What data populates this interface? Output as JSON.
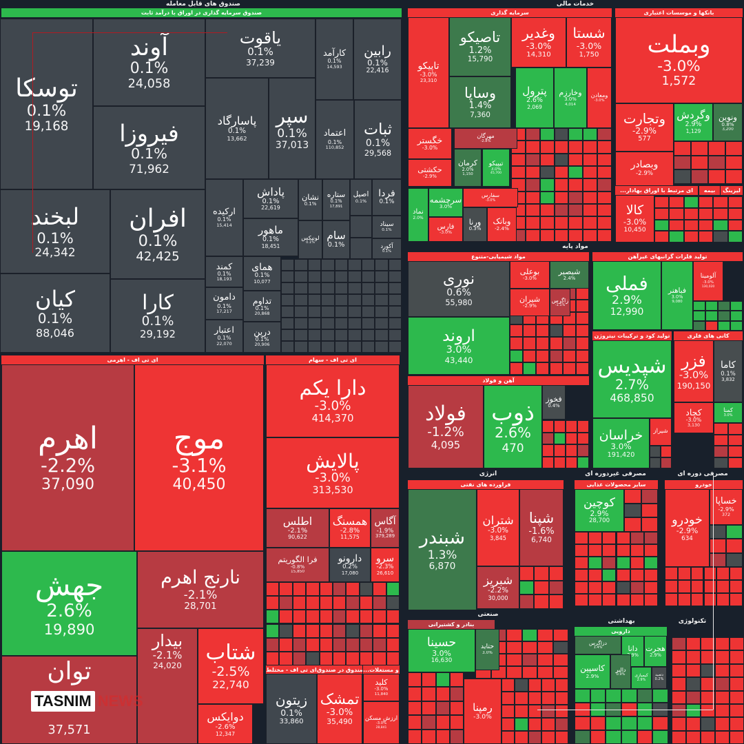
{
  "colors": {
    "gray": "#40474e",
    "red": "#ee3434",
    "dred": "#b73b42",
    "green": "#2db94d",
    "dgreen": "#3d7a4c",
    "slate": "#474d4f",
    "bg": "#18202b"
  },
  "sections": {
    "funds": "صندوق های قابل معامله",
    "fixed_income": "صندوق سرمایه گذاری در اوراق با درآمد ثابت",
    "financial": "خدمات مالی",
    "investment": "سرمایه گذاری",
    "banks": "بانکها و موسسات اعتباری",
    "commodity_funds": "...ای مرتبط با اوراق بهادار",
    "insurance": "بیمه",
    "leasing": "لیزینگ",
    "basic_materials": "مواد پایه",
    "chemicals": "مواد شیمیایی-متنوع",
    "precious_metals": "تولید فلزات گرانبهای غیرآهن",
    "fertilizer": "تولید کود و ترکیبات نیتروژن",
    "metal_ores": "کانی های فلزی",
    "steel": "آهن و فولاد",
    "energy": "انرژی",
    "oil_products": "فراورده های نفتی",
    "consumer_non_cyclical": "مصرفی غیردوره ای",
    "other_food": "سایر محصولات غذایی",
    "consumer_cyclical": "مصرفی دوره ای",
    "auto": "خودرو",
    "industrial": "صنعتی",
    "ports_shipping": "بنادر و کشتیرانی",
    "healthcare": "بهداشتی",
    "pharma": "دارویی",
    "technology": "تکنولوژی",
    "etf_leveraged": "ای تی اف - اهرمی",
    "etf_equity": "ای تی اف - سهام",
    "etf_mixed": "ای تی اف - مختلط",
    "fund_of_funds": "صندوق در صندوق",
    "real_estate": "...لاک و مستغلات"
  },
  "cells": [
    {
      "name": "توسکا",
      "pct": "0.1%",
      "val": "19,168",
      "color": "gray"
    },
    {
      "name": "آوند",
      "pct": "0.1%",
      "val": "24,058",
      "color": "gray"
    },
    {
      "name": "فیروزا",
      "pct": "0.1%",
      "val": "71,962",
      "color": "gray"
    },
    {
      "name": "یاقوت",
      "pct": "0.1%",
      "val": "37,239",
      "color": "gray"
    },
    {
      "name": "کارآمد",
      "pct": "0.1%",
      "val": "14,593",
      "color": "gray"
    },
    {
      "name": "رابین",
      "pct": "0.1%",
      "val": "22,416",
      "color": "gray"
    },
    {
      "name": "پاسارگاد",
      "pct": "0.1%",
      "val": "13,662",
      "color": "gray"
    },
    {
      "name": "سپر",
      "pct": "0.1%",
      "val": "37,013",
      "color": "gray"
    },
    {
      "name": "اعتماد",
      "pct": "0.1%",
      "val": "110,852",
      "color": "gray"
    },
    {
      "name": "ثبات",
      "pct": "0.1%",
      "val": "29,568",
      "color": "gray"
    },
    {
      "name": "لبخند",
      "pct": "0.1%",
      "val": "24,342",
      "color": "gray"
    },
    {
      "name": "افران",
      "pct": "0.1%",
      "val": "42,425",
      "color": "gray"
    },
    {
      "name": "کیان",
      "pct": "0.1%",
      "val": "88,046",
      "color": "gray"
    },
    {
      "name": "کارا",
      "pct": "0.1%",
      "val": "29,192",
      "color": "gray"
    },
    {
      "name": "ارکیده",
      "pct": "0.1%",
      "val": "15,414",
      "color": "gray"
    },
    {
      "name": "پاداش",
      "pct": "0.1%",
      "val": "22,619",
      "color": "gray"
    },
    {
      "name": "ماهور",
      "pct": "0.1%",
      "val": "18,451",
      "color": "gray"
    },
    {
      "name": "نشان",
      "pct": "0.1%",
      "val": "",
      "color": "gray"
    },
    {
      "name": "ستاره",
      "pct": "0.1%",
      "val": "17,891",
      "color": "gray"
    },
    {
      "name": "اصیل",
      "pct": "0.1%",
      "val": "",
      "color": "gray"
    },
    {
      "name": "فردا",
      "pct": "0.1%",
      "val": "",
      "color": "gray"
    },
    {
      "name": "لونیکس",
      "pct": "0.1%",
      "val": "",
      "color": "gray"
    },
    {
      "name": "سام",
      "pct": "0.1%",
      "val": "",
      "color": "gray"
    },
    {
      "name": "سیناد",
      "pct": "0.1%",
      "val": "",
      "color": "gray"
    },
    {
      "name": "آکورد",
      "pct": "0.1%",
      "val": "",
      "color": "gray"
    },
    {
      "name": "کمند",
      "pct": "0.1%",
      "val": "18,193",
      "color": "gray"
    },
    {
      "name": "همای",
      "pct": "0.1%",
      "val": "10,077",
      "color": "gray"
    },
    {
      "name": "دامون",
      "pct": "0.1%",
      "val": "17,217",
      "color": "gray"
    },
    {
      "name": "تداوم",
      "pct": "0.1%",
      "val": "20,868",
      "color": "gray"
    },
    {
      "name": "اعتبار",
      "pct": "0.1%",
      "val": "22,070",
      "color": "gray"
    },
    {
      "name": "درین",
      "pct": "0.1%",
      "val": "20,906",
      "color": "gray"
    },
    {
      "name": "اهرم",
      "pct": "-2.2%",
      "val": "37,090",
      "color": "dred"
    },
    {
      "name": "موج",
      "pct": "-3.1%",
      "val": "40,450",
      "color": "red"
    },
    {
      "name": "جهش",
      "pct": "2.6%",
      "val": "19,890",
      "color": "green"
    },
    {
      "name": "نارنج اهرم",
      "pct": "-2.1%",
      "val": "28,701",
      "color": "dred"
    },
    {
      "name": "توان",
      "pct": "",
      "val": "37,571",
      "color": "dred"
    },
    {
      "name": "بیدار",
      "pct": "-2.1%",
      "val": "24,020",
      "color": "dred"
    },
    {
      "name": "شتاب",
      "pct": "-2.5%",
      "val": "22,740",
      "color": "red"
    },
    {
      "name": "دوایکس",
      "pct": "-2.6%",
      "val": "12,347",
      "color": "red"
    },
    {
      "name": "دارا یکم",
      "pct": "-3.0%",
      "val": "414,370",
      "color": "red"
    },
    {
      "name": "پالایش",
      "pct": "-3.0%",
      "val": "313,530",
      "color": "red"
    },
    {
      "name": "اطلس",
      "pct": "-2.1%",
      "val": "90,622",
      "color": "dred"
    },
    {
      "name": "همسنگ",
      "pct": "-2.8%",
      "val": "11,575",
      "color": "red"
    },
    {
      "name": "آگاس",
      "pct": "-1.9%",
      "val": "379,289",
      "color": "dred"
    },
    {
      "name": "فرا الگوریتم",
      "pct": "-0.8%",
      "val": "15,850",
      "color": "dred"
    },
    {
      "name": "دارونو",
      "pct": "0.2%",
      "val": "17,080",
      "color": "gray"
    },
    {
      "name": "سرو",
      "pct": "-2.3%",
      "val": "26,610",
      "color": "red"
    },
    {
      "name": "زیتون",
      "pct": "0.1%",
      "val": "33,860",
      "color": "gray"
    },
    {
      "name": "تمشک",
      "pct": "-3.0%",
      "val": "35,490",
      "color": "red"
    },
    {
      "name": "کلید",
      "pct": "-3.0%",
      "val": "11,840",
      "color": "red"
    },
    {
      "name": "ارزش مسکن",
      "pct": "-3.0%",
      "val": "28,841",
      "color": "red"
    },
    {
      "name": "تاپیکو",
      "pct": "-3.0%",
      "val": "23,310",
      "color": "red"
    },
    {
      "name": "تاصیکو",
      "pct": "1.2%",
      "val": "15,790",
      "color": "dgreen"
    },
    {
      "name": "وساپا",
      "pct": "1.4%",
      "val": "7,360",
      "color": "dgreen"
    },
    {
      "name": "وغدیر",
      "pct": "-3.0%",
      "val": "14,310",
      "color": "red"
    },
    {
      "name": "شستا",
      "pct": "-3.0%",
      "val": "1,750",
      "color": "red"
    },
    {
      "name": "پترول",
      "pct": "2.6%",
      "val": "2,069",
      "color": "green"
    },
    {
      "name": "وخارزم",
      "pct": "3.0%",
      "val": "4,014",
      "color": "green"
    },
    {
      "name": "ومعادن",
      "pct": "-3.0%",
      "val": "",
      "color": "red"
    },
    {
      "name": "خگستر",
      "pct": "-3.0%",
      "val": "",
      "color": "red"
    },
    {
      "name": "حکشتی",
      "pct": "-2.9%",
      "val": "",
      "color": "red"
    },
    {
      "name": "مهرگان",
      "pct": "-2.8%",
      "val": "",
      "color": "dred"
    },
    {
      "name": "کرمان",
      "pct": "2.0%",
      "val": "1,150",
      "color": "dgreen"
    },
    {
      "name": "تیپیکو",
      "pct": "3.0%",
      "val": "45,700",
      "color": "green"
    },
    {
      "name": "نماد",
      "pct": "2.0%",
      "val": "",
      "color": "green"
    },
    {
      "name": "سرچشمه",
      "pct": "3.0%",
      "val": "",
      "color": "green"
    },
    {
      "name": "سفارس",
      "pct": "-3.0%",
      "val": "",
      "color": "red"
    },
    {
      "name": "فارس",
      "pct": "-3.0%",
      "val": "",
      "color": "red"
    },
    {
      "name": "ورنا",
      "pct": "0.3%",
      "val": "",
      "color": "slate"
    },
    {
      "name": "وبانک",
      "pct": "-2.4%",
      "val": "",
      "color": "red"
    },
    {
      "name": "وبملت",
      "pct": "-3.0%",
      "val": "1,572",
      "color": "red"
    },
    {
      "name": "وتجارت",
      "pct": "-2.9%",
      "val": "577",
      "color": "red"
    },
    {
      "name": "وگردش",
      "pct": "2.9%",
      "val": "1,129",
      "color": "green"
    },
    {
      "name": "ونوین",
      "pct": "0.8%",
      "val": "3,200",
      "color": "dgreen"
    },
    {
      "name": "وبصادر",
      "pct": "-2.9%",
      "val": "",
      "color": "red"
    },
    {
      "name": "کالا",
      "pct": "-3.0%",
      "val": "10,450",
      "color": "red"
    },
    {
      "name": "نوری",
      "pct": "0.6%",
      "val": "55,980",
      "color": "slate"
    },
    {
      "name": "اروند",
      "pct": "3.0%",
      "val": "43,440",
      "color": "green"
    },
    {
      "name": "بوعلی",
      "pct": "-3.0%",
      "val": "",
      "color": "red"
    },
    {
      "name": "شیصیر",
      "pct": "2.4%",
      "val": "",
      "color": "dgreen"
    },
    {
      "name": "شیران",
      "pct": "-2.9%",
      "val": "",
      "color": "red"
    },
    {
      "name": "زاگرس",
      "pct": "-1.1%",
      "val": "",
      "color": "dred"
    },
    {
      "name": "فولاد",
      "pct": "-1.2%",
      "val": "4,095",
      "color": "dred"
    },
    {
      "name": "ذوب",
      "pct": "2.6%",
      "val": "470",
      "color": "green"
    },
    {
      "name": "فخوز",
      "pct": "0.4%",
      "val": "",
      "color": "slate"
    },
    {
      "name": "فملی",
      "pct": "2.9%",
      "val": "12,990",
      "color": "green"
    },
    {
      "name": "فباهنر",
      "pct": "3.0%",
      "val": "9,080",
      "color": "green"
    },
    {
      "name": "آلومینا",
      "pct": "-3.0%",
      "val": "130,020",
      "color": "red"
    },
    {
      "name": "شپدیس",
      "pct": "2.7%",
      "val": "468,850",
      "color": "green"
    },
    {
      "name": "خراسان",
      "pct": "3.0%",
      "val": "191,420",
      "color": "green"
    },
    {
      "name": "شیراز",
      "pct": "",
      "val": "",
      "color": "red"
    },
    {
      "name": "فزر",
      "pct": "-3.0%",
      "val": "190,150",
      "color": "red"
    },
    {
      "name": "کاما",
      "pct": "0.1%",
      "val": "3,832",
      "color": "slate"
    },
    {
      "name": "کچاد",
      "pct": "-3.0%",
      "val": "3,130",
      "color": "red"
    },
    {
      "name": "کمنا",
      "pct": "3.0%",
      "val": "",
      "color": "green"
    },
    {
      "name": "شبندر",
      "pct": "1.3%",
      "val": "6,870",
      "color": "dgreen"
    },
    {
      "name": "شتران",
      "pct": "-3.0%",
      "val": "3,845",
      "color": "red"
    },
    {
      "name": "شپنا",
      "pct": "-1.6%",
      "val": "6,740",
      "color": "dred"
    },
    {
      "name": "شبریز",
      "pct": "-2.2%",
      "val": "30,000",
      "color": "dred"
    },
    {
      "name": "کوچین",
      "pct": "2.9%",
      "val": "28,700",
      "color": "green"
    },
    {
      "name": "خودرو",
      "pct": "-2.9%",
      "val": "634",
      "color": "red"
    },
    {
      "name": "خساپا",
      "pct": "-2.9%",
      "val": "372",
      "color": "red"
    },
    {
      "name": "حسینا",
      "pct": "3.0%",
      "val": "16,630",
      "color": "green"
    },
    {
      "name": "حتاید",
      "pct": "3.0%",
      "val": "",
      "color": "dgreen"
    },
    {
      "name": "رمپنا",
      "pct": "-3.0%",
      "val": "",
      "color": "red"
    },
    {
      "name": "دزاگرس",
      "pct": "1.4%",
      "val": "",
      "color": "dgreen"
    },
    {
      "name": "دانا",
      "pct": "2.9%",
      "val": "",
      "color": "green"
    },
    {
      "name": "هجرت",
      "pct": "2.9%",
      "val": "",
      "color": "green"
    },
    {
      "name": "کاسپین",
      "pct": "2.9%",
      "val": "",
      "color": "green"
    },
    {
      "name": "دالبر",
      "pct": "0.9%",
      "val": "",
      "color": "dgreen"
    },
    {
      "name": "کیمیازی",
      "pct": "2.9%",
      "val": "",
      "color": "green"
    },
    {
      "name": "دتعبید",
      "pct": "0.2%",
      "val": "",
      "color": "slate"
    }
  ],
  "watermark": {
    "brand": "TASNIM",
    "suffix": "NEWS"
  }
}
